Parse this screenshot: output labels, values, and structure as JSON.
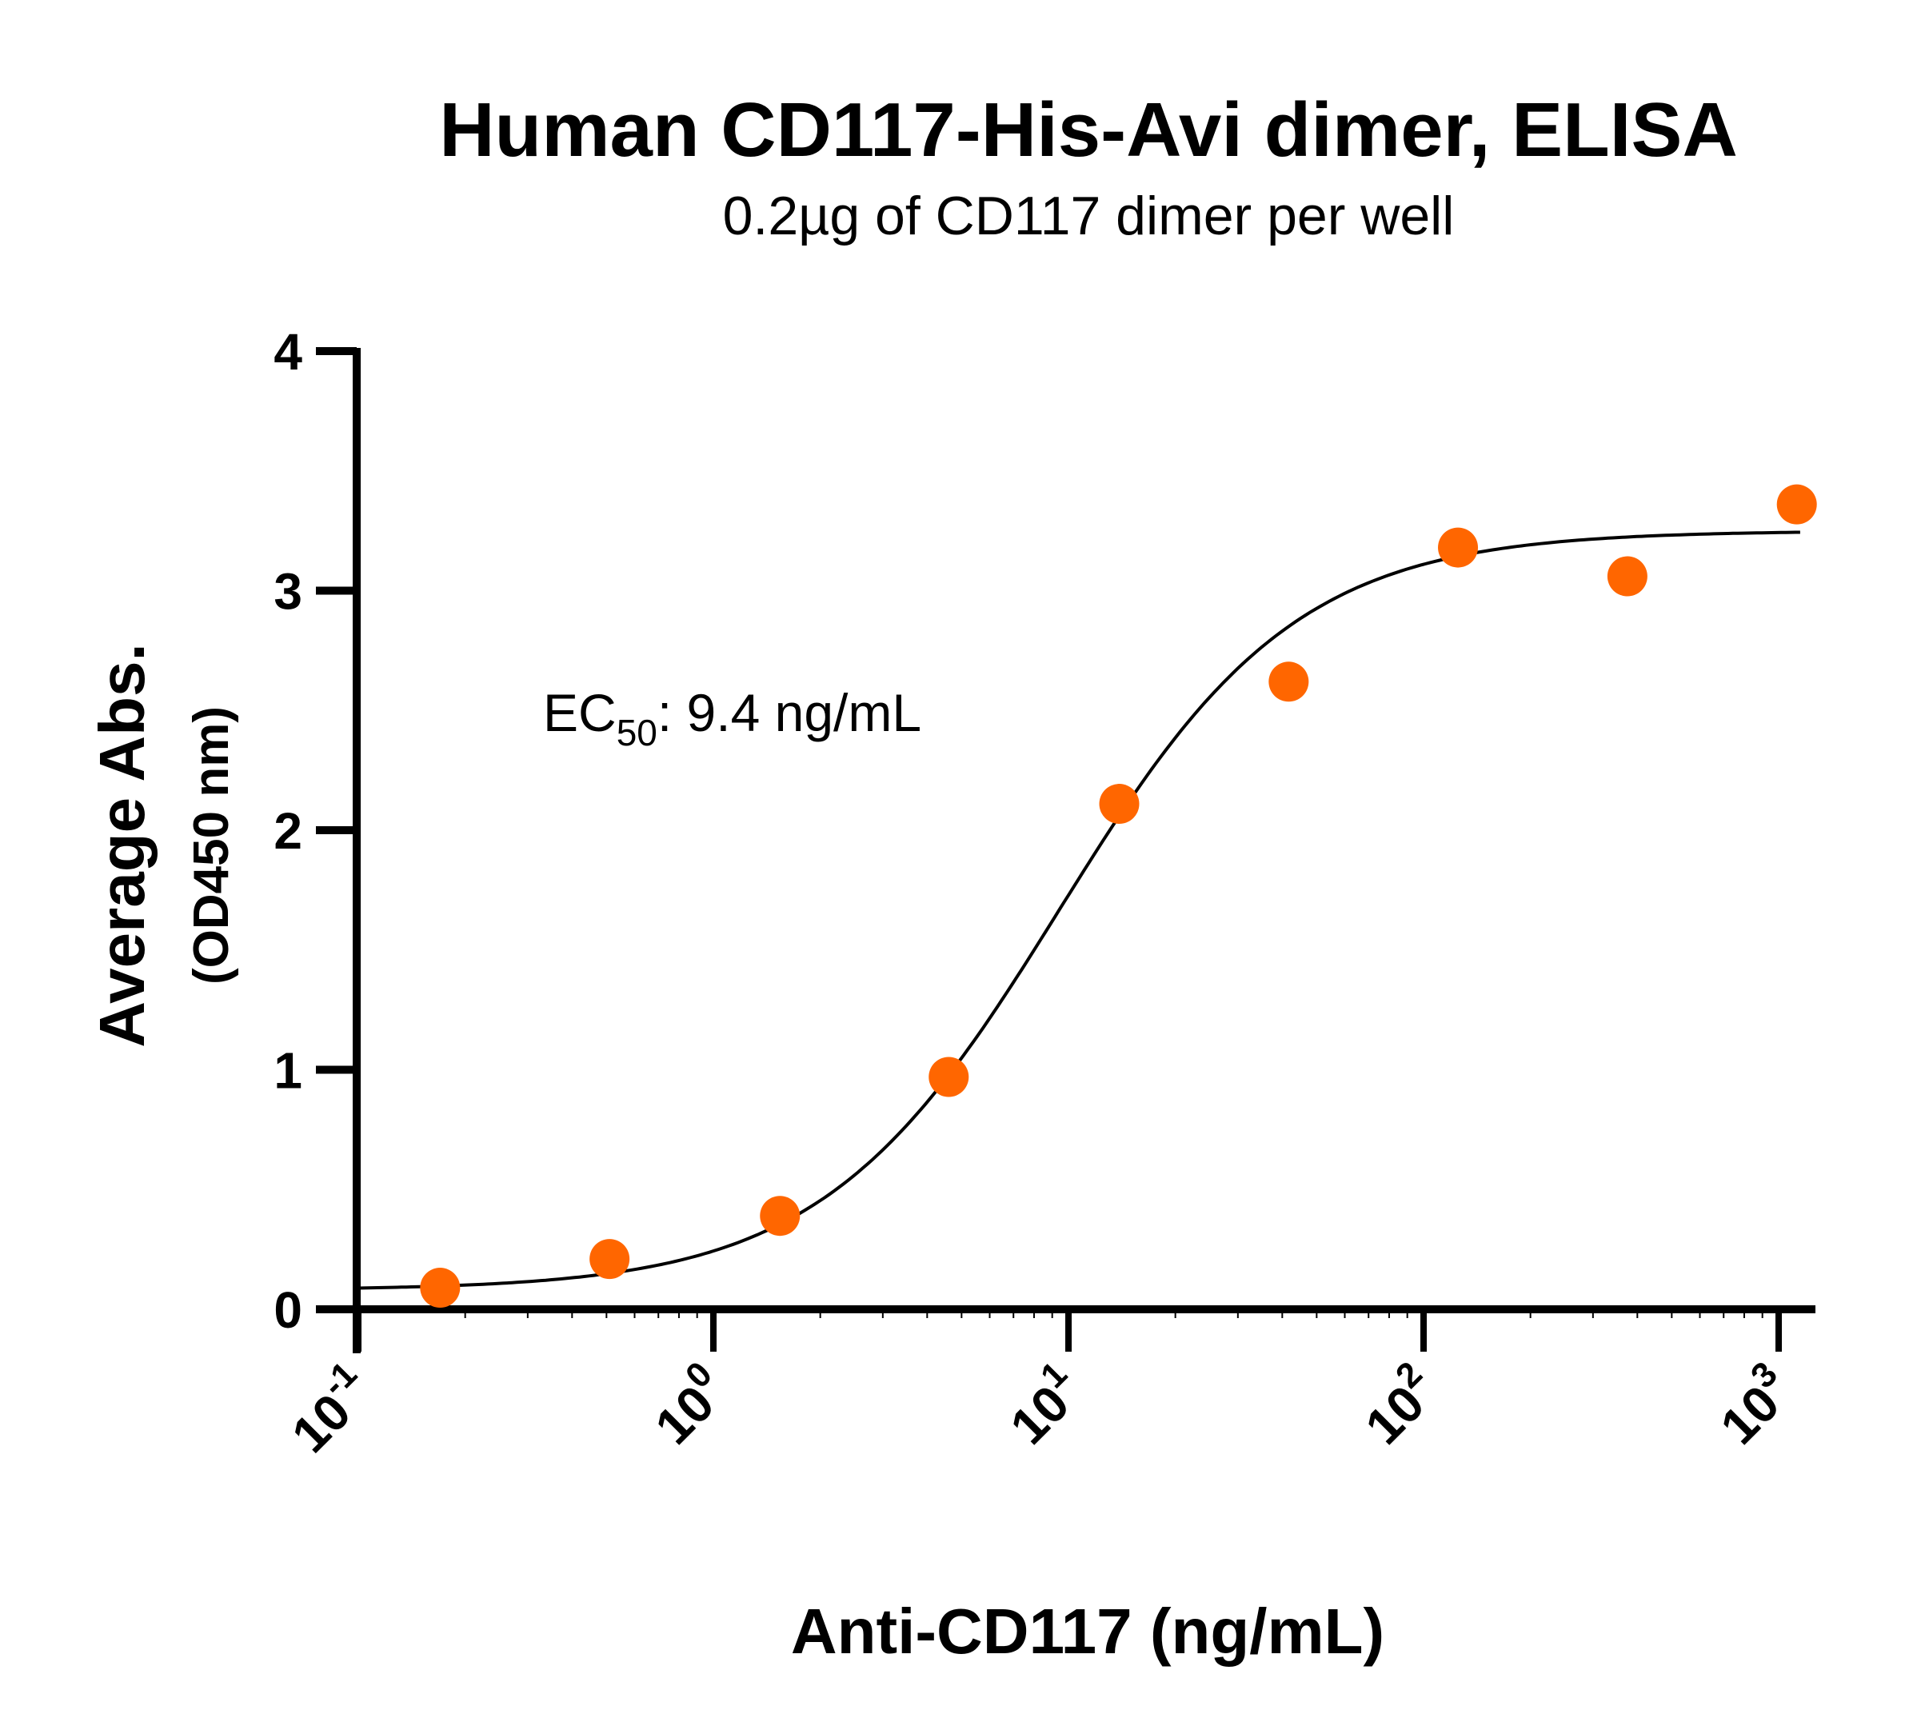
{
  "chart_data": {
    "type": "scatter",
    "title": "Human CD117-His-Avi dimer, ELISA",
    "subtitle": "0.2µg of CD117 dimer per well",
    "xlabel": "Anti-CD117  (ng/mL)",
    "ylabel": "Average Abs.",
    "ylabel_sub": "(OD450 nm)",
    "x_scale": "log",
    "xlim": [
      0.1,
      1300
    ],
    "ylim": [
      0,
      4
    ],
    "x_ticks": [
      {
        "value": 0.1,
        "base": "10",
        "exp": "-1"
      },
      {
        "value": 1,
        "base": "10",
        "exp": "0"
      },
      {
        "value": 10,
        "base": "10",
        "exp": "1"
      },
      {
        "value": 100,
        "base": "10",
        "exp": "2"
      },
      {
        "value": 1000,
        "base": "10",
        "exp": "3"
      }
    ],
    "y_ticks": [
      "0",
      "1",
      "2",
      "3",
      "4"
    ],
    "grid": false,
    "annotation": {
      "prefix": "EC",
      "sub": "50",
      "suffix": ": 9.4 ng/mL"
    },
    "ec50": 9.4,
    "marker_color": "#ff6600",
    "curve_color": "#000000",
    "points": {
      "x": [
        0.17,
        0.51,
        1.54,
        4.6,
        13.9,
        41.7,
        125,
        375,
        1125
      ],
      "y": [
        0.09,
        0.21,
        0.39,
        0.97,
        2.11,
        2.62,
        3.18,
        3.06,
        3.36
      ]
    }
  }
}
